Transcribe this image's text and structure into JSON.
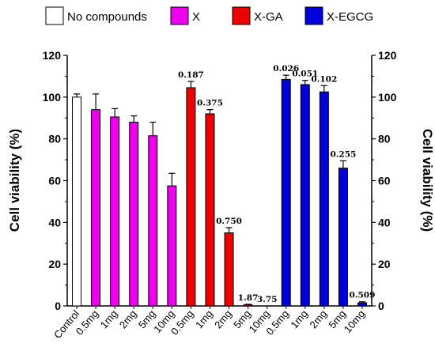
{
  "chart_data": {
    "type": "bar",
    "categories": [
      "Control",
      "0.5mg",
      "1mg",
      "2mg",
      "5mg",
      "10mg",
      "0.5mg",
      "1mg",
      "2mg",
      "5mg",
      "10mg",
      "0.5mg",
      "1mg",
      "2mg",
      "5mg",
      "10mg"
    ],
    "groups": [
      0,
      1,
      1,
      1,
      1,
      1,
      2,
      2,
      2,
      2,
      2,
      3,
      3,
      3,
      3,
      3
    ],
    "values": [
      100,
      94,
      90.5,
      88,
      81.5,
      57.5,
      104.5,
      92,
      35,
      0.5,
      0,
      108.5,
      106,
      102.5,
      66,
      1.5
    ],
    "errors": [
      1.5,
      7.5,
      4,
      3,
      6.5,
      6,
      3,
      2,
      2.5,
      0.3,
      0,
      2,
      2,
      3,
      3.5,
      0.5
    ],
    "data_labels": [
      "",
      "",
      "",
      "",
      "",
      "",
      "0.187",
      "0.375",
      "0.750",
      "1.87",
      "3.75",
      "0.026",
      "0.051",
      "0.102",
      "0.255",
      "0.509"
    ],
    "series": [
      {
        "name": "No compounds",
        "color": "#ffffff"
      },
      {
        "name": "X",
        "color": "#ee00ee"
      },
      {
        "name": "X-GA",
        "color": "#ee0000"
      },
      {
        "name": "X-EGCG",
        "color": "#0000dd"
      }
    ],
    "ylabel": "Cell viability (%)",
    "ylabel_right": "Cell viability (%)",
    "ylim": [
      0,
      120
    ],
    "yticks": [
      0,
      20,
      40,
      60,
      80,
      100,
      120
    ],
    "grid": false,
    "legend_position": "top"
  }
}
